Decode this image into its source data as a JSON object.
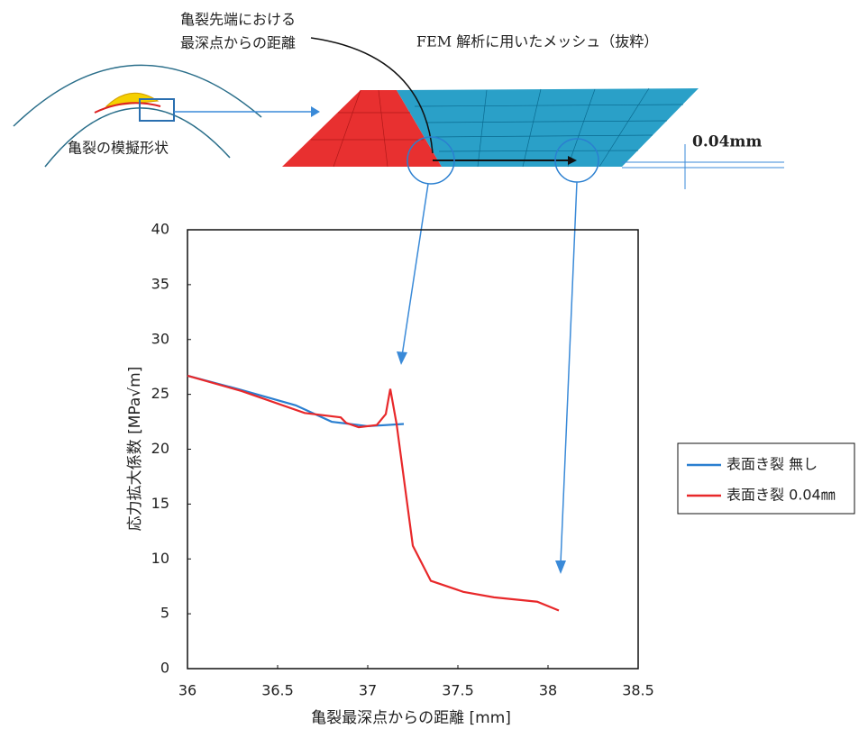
{
  "diagram": {
    "crack_tip_note": [
      "亀裂先端における",
      "最深点からの距離"
    ],
    "mesh_title": "FEM 解析に用いたメッシュ（抜粋）",
    "depth_label": "0.04mm",
    "shape_label": "亀裂の模擬形状"
  },
  "chart_data": {
    "type": "line",
    "xlabel": "亀裂最深点からの距離 [mm]",
    "ylabel": "応力拡大係数 [MPa√m]",
    "xlim": [
      36,
      38.5
    ],
    "xticks": [
      36,
      36.5,
      37,
      37.5,
      38,
      38.5
    ],
    "ylim": [
      0,
      40
    ],
    "yticks": [
      0,
      5,
      10,
      15,
      20,
      25,
      30,
      35,
      40
    ],
    "grid": false,
    "legend": "right",
    "series": [
      {
        "name": "表面き裂 無し",
        "color": "#2a7fd0",
        "x": [
          36,
          36.3,
          36.6,
          36.8,
          37.0,
          37.2
        ],
        "values": [
          26.7,
          25.4,
          24.0,
          22.5,
          22.1,
          22.3
        ]
      },
      {
        "name": "表面き裂 0.04㎜",
        "color": "#e8282a",
        "x": [
          36,
          36.3,
          36.65,
          36.85,
          36.88,
          36.95,
          37.05,
          37.1,
          37.125,
          37.16,
          37.25,
          37.35,
          37.53,
          37.7,
          37.94,
          38.06
        ],
        "values": [
          26.7,
          25.3,
          23.3,
          22.9,
          22.4,
          22.0,
          22.2,
          23.2,
          25.5,
          22.3,
          11.2,
          8.0,
          7.0,
          6.5,
          6.1,
          5.3
        ]
      }
    ]
  }
}
